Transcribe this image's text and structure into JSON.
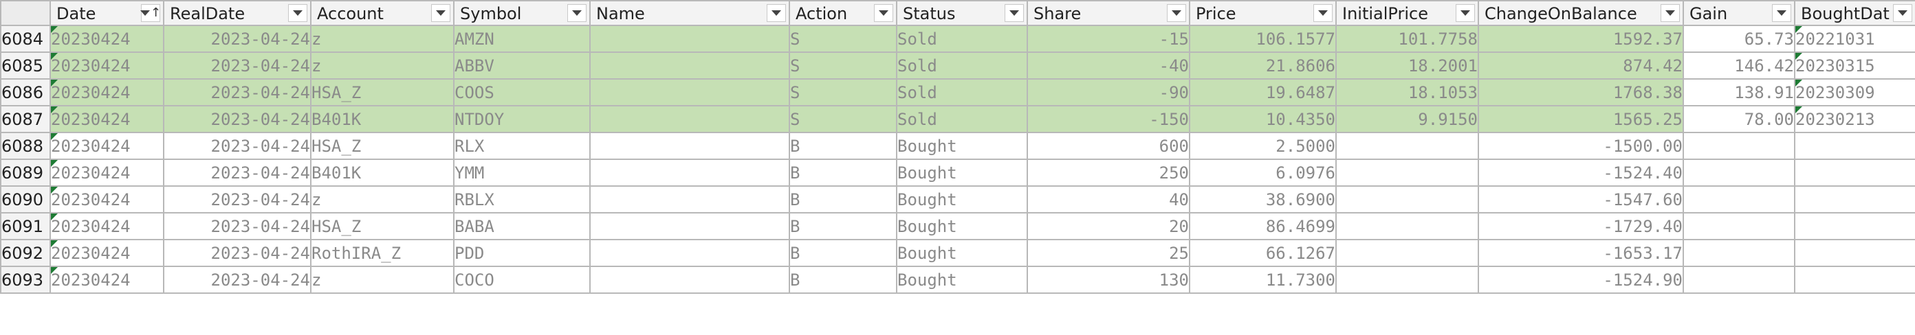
{
  "columns": [
    {
      "key": "Date",
      "label": "Date",
      "sorted": "asc"
    },
    {
      "key": "RealDate",
      "label": "RealDate"
    },
    {
      "key": "Account",
      "label": "Account"
    },
    {
      "key": "Symbol",
      "label": "Symbol"
    },
    {
      "key": "Name",
      "label": "Name"
    },
    {
      "key": "Action",
      "label": "Action"
    },
    {
      "key": "Status",
      "label": "Status"
    },
    {
      "key": "Share",
      "label": "Share"
    },
    {
      "key": "Price",
      "label": "Price"
    },
    {
      "key": "InitialPrice",
      "label": "InitialPrice"
    },
    {
      "key": "ChangeOnBalance",
      "label": "ChangeOnBalance"
    },
    {
      "key": "Gain",
      "label": "Gain"
    },
    {
      "key": "BoughtDate",
      "label": "BoughtDat"
    }
  ],
  "rows": [
    {
      "num": "6084",
      "highlight": "sold",
      "Date": "20230424",
      "RealDate": "2023-04-24",
      "Account": "z",
      "Symbol": "AMZN",
      "Name": "",
      "Action": "S",
      "Status": "Sold",
      "Share": "-15",
      "Price": "106.1577",
      "InitialPrice": "101.7758",
      "ChangeOnBalance": "1592.37",
      "Gain": "65.73",
      "BoughtDate": "20221031"
    },
    {
      "num": "6085",
      "highlight": "sold",
      "Date": "20230424",
      "RealDate": "2023-04-24",
      "Account": "z",
      "Symbol": "ABBV",
      "Name": "",
      "Action": "S",
      "Status": "Sold",
      "Share": "-40",
      "Price": "21.8606",
      "InitialPrice": "18.2001",
      "ChangeOnBalance": "874.42",
      "Gain": "146.42",
      "BoughtDate": "20230315"
    },
    {
      "num": "6086",
      "highlight": "sold",
      "Date": "20230424",
      "RealDate": "2023-04-24",
      "Account": "HSA_Z",
      "Symbol": "COOS",
      "Name": "",
      "Action": "S",
      "Status": "Sold",
      "Share": "-90",
      "Price": "19.6487",
      "InitialPrice": "18.1053",
      "ChangeOnBalance": "1768.38",
      "Gain": "138.91",
      "BoughtDate": "20230309"
    },
    {
      "num": "6087",
      "highlight": "sold",
      "Date": "20230424",
      "RealDate": "2023-04-24",
      "Account": "B401K",
      "Symbol": "NTDOY",
      "Name": "",
      "Action": "S",
      "Status": "Sold",
      "Share": "-150",
      "Price": "10.4350",
      "InitialPrice": "9.9150",
      "ChangeOnBalance": "1565.25",
      "Gain": "78.00",
      "BoughtDate": "20230213"
    },
    {
      "num": "6088",
      "highlight": "",
      "Date": "20230424",
      "RealDate": "2023-04-24",
      "Account": "HSA_Z",
      "Symbol": "RLX",
      "Name": "",
      "Action": "B",
      "Status": "Bought",
      "Share": "600",
      "Price": "2.5000",
      "InitialPrice": "",
      "ChangeOnBalance": "-1500.00",
      "Gain": "",
      "BoughtDate": ""
    },
    {
      "num": "6089",
      "highlight": "",
      "Date": "20230424",
      "RealDate": "2023-04-24",
      "Account": "B401K",
      "Symbol": "YMM",
      "Name": "",
      "Action": "B",
      "Status": "Bought",
      "Share": "250",
      "Price": "6.0976",
      "InitialPrice": "",
      "ChangeOnBalance": "-1524.40",
      "Gain": "",
      "BoughtDate": ""
    },
    {
      "num": "6090",
      "highlight": "",
      "Date": "20230424",
      "RealDate": "2023-04-24",
      "Account": "z",
      "Symbol": "RBLX",
      "Name": "",
      "Action": "B",
      "Status": "Bought",
      "Share": "40",
      "Price": "38.6900",
      "InitialPrice": "",
      "ChangeOnBalance": "-1547.60",
      "Gain": "",
      "BoughtDate": ""
    },
    {
      "num": "6091",
      "highlight": "",
      "Date": "20230424",
      "RealDate": "2023-04-24",
      "Account": "HSA_Z",
      "Symbol": "BABA",
      "Name": "",
      "Action": "B",
      "Status": "Bought",
      "Share": "20",
      "Price": "86.4699",
      "InitialPrice": "",
      "ChangeOnBalance": "-1729.40",
      "Gain": "",
      "BoughtDate": ""
    },
    {
      "num": "6092",
      "highlight": "",
      "Date": "20230424",
      "RealDate": "2023-04-24",
      "Account": "RothIRA_Z",
      "Symbol": "PDD",
      "Name": "",
      "Action": "B",
      "Status": "Bought",
      "Share": "25",
      "Price": "66.1267",
      "InitialPrice": "",
      "ChangeOnBalance": "-1653.17",
      "Gain": "",
      "BoughtDate": ""
    },
    {
      "num": "6093",
      "highlight": "",
      "Date": "20230424",
      "RealDate": "2023-04-24",
      "Account": "z",
      "Symbol": "COCO",
      "Name": "",
      "Action": "B",
      "Status": "Bought",
      "Share": "130",
      "Price": "11.7300",
      "InitialPrice": "",
      "ChangeOnBalance": "-1524.90",
      "Gain": "",
      "BoughtDate": ""
    }
  ],
  "colors": {
    "sold_fill": "#c6e0b4",
    "header_bg": "#f3f3f3",
    "gridline": "#b8b8b8",
    "error_indicator": "#1e7b34",
    "cell_text": "#8a8a8a"
  },
  "icons": {
    "filter": "filter-dropdown-icon",
    "sort": "sort-ascending-icon",
    "error_indicator": "green-triangle-indicator-icon"
  }
}
